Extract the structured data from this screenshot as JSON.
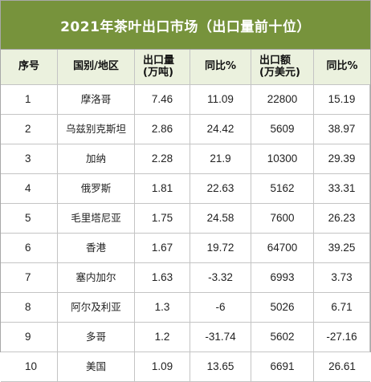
{
  "title": "2021年茶叶出口市场（出口量前十位）",
  "headers": {
    "rank": "序号",
    "region": "国别/地区",
    "volume_l1": "出口量",
    "volume_l2": "(万吨)",
    "volume_yoy": "同比%",
    "value_l1": "出口额",
    "value_l2": "(万美元)",
    "value_yoy": "同比%"
  },
  "rows": [
    {
      "rank": "1",
      "region": "摩洛哥",
      "volume": "7.46",
      "volume_yoy": "11.09",
      "value": "22800",
      "value_yoy": "15.19"
    },
    {
      "rank": "2",
      "region": "乌兹别克斯坦",
      "volume": "2.86",
      "volume_yoy": "24.42",
      "value": "5609",
      "value_yoy": "38.97"
    },
    {
      "rank": "3",
      "region": "加纳",
      "volume": "2.28",
      "volume_yoy": "21.9",
      "value": "10300",
      "value_yoy": "29.39"
    },
    {
      "rank": "4",
      "region": "俄罗斯",
      "volume": "1.81",
      "volume_yoy": "22.63",
      "value": "5162",
      "value_yoy": "33.31"
    },
    {
      "rank": "5",
      "region": "毛里塔尼亚",
      "volume": "1.75",
      "volume_yoy": "24.58",
      "value": "7600",
      "value_yoy": "26.23"
    },
    {
      "rank": "6",
      "region": "香港",
      "volume": "1.67",
      "volume_yoy": "19.72",
      "value": "64700",
      "value_yoy": "39.25"
    },
    {
      "rank": "7",
      "region": "塞内加尔",
      "volume": "1.63",
      "volume_yoy": "-3.32",
      "value": "6993",
      "value_yoy": "3.73"
    },
    {
      "rank": "8",
      "region": "阿尔及利亚",
      "volume": "1.3",
      "volume_yoy": "-6",
      "value": "5026",
      "value_yoy": "6.71"
    },
    {
      "rank": "9",
      "region": "多哥",
      "volume": "1.2",
      "volume_yoy": "-31.74",
      "value": "5602",
      "value_yoy": "-27.16"
    },
    {
      "rank": "10",
      "region": "美国",
      "volume": "1.09",
      "volume_yoy": "13.65",
      "value": "6691",
      "value_yoy": "26.61"
    }
  ],
  "colors": {
    "title_bg": "#77933c",
    "header_bg": "#ebf1de",
    "grid_line": "#c4c4c4"
  }
}
